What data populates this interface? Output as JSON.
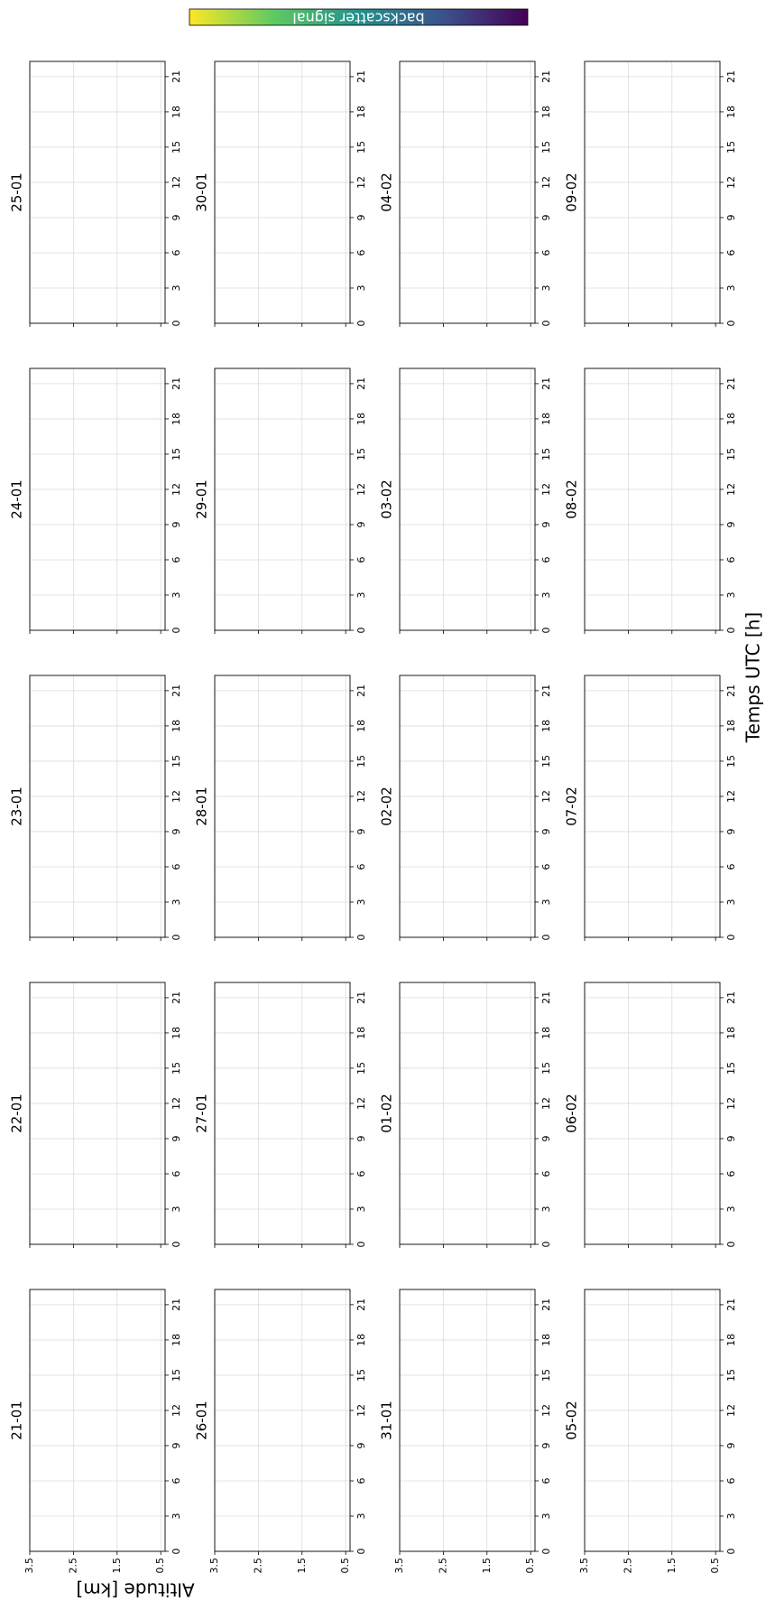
{
  "figure": {
    "xlabel": "Temps UTC [h]",
    "ylabel": "Altitude [km]",
    "colorbar": {
      "label": "backscatter signal",
      "colors": [
        "#fde725",
        "#5ec962",
        "#21918c",
        "#3b528b",
        "#440154"
      ]
    }
  },
  "chart_data": [
    {
      "type": "heatmap",
      "title": "21-01",
      "xlim": [
        0,
        22.3
      ],
      "xticks": [
        0,
        3,
        6,
        9,
        12,
        15,
        18,
        21
      ],
      "ylim": [
        0.4,
        3.5
      ],
      "yticks": [
        0.5,
        1.5,
        2.5,
        3.5
      ],
      "grid": true
    },
    {
      "type": "heatmap",
      "title": "22-01",
      "xlim": [
        0,
        22.3
      ],
      "xticks": [
        0,
        3,
        6,
        9,
        12,
        15,
        18,
        21
      ],
      "ylim": [
        0.4,
        3.5
      ],
      "yticks": [
        0.5,
        1.5,
        2.5,
        3.5
      ],
      "grid": true
    },
    {
      "type": "heatmap",
      "title": "23-01",
      "xlim": [
        0,
        22.3
      ],
      "xticks": [
        0,
        3,
        6,
        9,
        12,
        15,
        18,
        21
      ],
      "ylim": [
        0.4,
        3.5
      ],
      "yticks": [
        0.5,
        1.5,
        2.5,
        3.5
      ],
      "grid": true
    },
    {
      "type": "heatmap",
      "title": "24-01",
      "xlim": [
        0,
        22.3
      ],
      "xticks": [
        0,
        3,
        6,
        9,
        12,
        15,
        18,
        21
      ],
      "ylim": [
        0.4,
        3.5
      ],
      "yticks": [
        0.5,
        1.5,
        2.5,
        3.5
      ],
      "grid": true
    },
    {
      "type": "heatmap",
      "title": "25-01",
      "xlim": [
        0,
        22.3
      ],
      "xticks": [
        0,
        3,
        6,
        9,
        12,
        15,
        18,
        21
      ],
      "ylim": [
        0.4,
        3.5
      ],
      "yticks": [
        0.5,
        1.5,
        2.5,
        3.5
      ],
      "grid": true
    },
    {
      "type": "heatmap",
      "title": "26-01",
      "xlim": [
        0,
        22.3
      ],
      "xticks": [
        0,
        3,
        6,
        9,
        12,
        15,
        18,
        21
      ],
      "ylim": [
        0.4,
        3.5
      ],
      "yticks": [
        0.5,
        1.5,
        2.5,
        3.5
      ],
      "grid": true
    },
    {
      "type": "heatmap",
      "title": "27-01",
      "xlim": [
        0,
        22.3
      ],
      "xticks": [
        0,
        3,
        6,
        9,
        12,
        15,
        18,
        21
      ],
      "ylim": [
        0.4,
        3.5
      ],
      "yticks": [
        0.5,
        1.5,
        2.5,
        3.5
      ],
      "grid": true
    },
    {
      "type": "heatmap",
      "title": "28-01",
      "xlim": [
        0,
        22.3
      ],
      "xticks": [
        0,
        3,
        6,
        9,
        12,
        15,
        18,
        21
      ],
      "ylim": [
        0.4,
        3.5
      ],
      "yticks": [
        0.5,
        1.5,
        2.5,
        3.5
      ],
      "grid": true
    },
    {
      "type": "heatmap",
      "title": "29-01",
      "xlim": [
        0,
        22.3
      ],
      "xticks": [
        0,
        3,
        6,
        9,
        12,
        15,
        18,
        21
      ],
      "ylim": [
        0.4,
        3.5
      ],
      "yticks": [
        0.5,
        1.5,
        2.5,
        3.5
      ],
      "grid": true
    },
    {
      "type": "heatmap",
      "title": "30-01",
      "xlim": [
        0,
        22.3
      ],
      "xticks": [
        0,
        3,
        6,
        9,
        12,
        15,
        18,
        21
      ],
      "ylim": [
        0.4,
        3.5
      ],
      "yticks": [
        0.5,
        1.5,
        2.5,
        3.5
      ],
      "grid": true
    },
    {
      "type": "heatmap",
      "title": "31-01",
      "xlim": [
        0,
        22.3
      ],
      "xticks": [
        0,
        3,
        6,
        9,
        12,
        15,
        18,
        21
      ],
      "ylim": [
        0.4,
        3.5
      ],
      "yticks": [
        0.5,
        1.5,
        2.5,
        3.5
      ],
      "grid": true
    },
    {
      "type": "heatmap",
      "title": "01-02",
      "xlim": [
        0,
        22.3
      ],
      "xticks": [
        0,
        3,
        6,
        9,
        12,
        15,
        18,
        21
      ],
      "ylim": [
        0.4,
        3.5
      ],
      "yticks": [
        0.5,
        1.5,
        2.5,
        3.5
      ],
      "grid": true
    },
    {
      "type": "heatmap",
      "title": "02-02",
      "xlim": [
        0,
        22.3
      ],
      "xticks": [
        0,
        3,
        6,
        9,
        12,
        15,
        18,
        21
      ],
      "ylim": [
        0.4,
        3.5
      ],
      "yticks": [
        0.5,
        1.5,
        2.5,
        3.5
      ],
      "grid": true
    },
    {
      "type": "heatmap",
      "title": "03-02",
      "xlim": [
        0,
        22.3
      ],
      "xticks": [
        0,
        3,
        6,
        9,
        12,
        15,
        18,
        21
      ],
      "ylim": [
        0.4,
        3.5
      ],
      "yticks": [
        0.5,
        1.5,
        2.5,
        3.5
      ],
      "grid": true
    },
    {
      "type": "heatmap",
      "title": "04-02",
      "xlim": [
        0,
        22.3
      ],
      "xticks": [
        0,
        3,
        6,
        9,
        12,
        15,
        18,
        21
      ],
      "ylim": [
        0.4,
        3.5
      ],
      "yticks": [
        0.5,
        1.5,
        2.5,
        3.5
      ],
      "grid": true
    },
    {
      "type": "heatmap",
      "title": "05-02",
      "xlim": [
        0,
        22.3
      ],
      "xticks": [
        0,
        3,
        6,
        9,
        12,
        15,
        18,
        21
      ],
      "ylim": [
        0.4,
        3.5
      ],
      "yticks": [
        0.5,
        1.5,
        2.5,
        3.5
      ],
      "grid": true
    },
    {
      "type": "heatmap",
      "title": "06-02",
      "xlim": [
        0,
        22.3
      ],
      "xticks": [
        0,
        3,
        6,
        9,
        12,
        15,
        18,
        21
      ],
      "ylim": [
        0.4,
        3.5
      ],
      "yticks": [
        0.5,
        1.5,
        2.5,
        3.5
      ],
      "grid": true
    },
    {
      "type": "heatmap",
      "title": "07-02",
      "xlim": [
        0,
        22.3
      ],
      "xticks": [
        0,
        3,
        6,
        9,
        12,
        15,
        18,
        21
      ],
      "ylim": [
        0.4,
        3.5
      ],
      "yticks": [
        0.5,
        1.5,
        2.5,
        3.5
      ],
      "grid": true
    },
    {
      "type": "heatmap",
      "title": "08-02",
      "xlim": [
        0,
        22.3
      ],
      "xticks": [
        0,
        3,
        6,
        9,
        12,
        15,
        18,
        21
      ],
      "ylim": [
        0.4,
        3.5
      ],
      "yticks": [
        0.5,
        1.5,
        2.5,
        3.5
      ],
      "grid": true
    },
    {
      "type": "heatmap",
      "title": "09-02",
      "xlim": [
        0,
        22.3
      ],
      "xticks": [
        0,
        3,
        6,
        9,
        12,
        15,
        18,
        21
      ],
      "ylim": [
        0.4,
        3.5
      ],
      "yticks": [
        0.5,
        1.5,
        2.5,
        3.5
      ],
      "grid": true
    }
  ]
}
